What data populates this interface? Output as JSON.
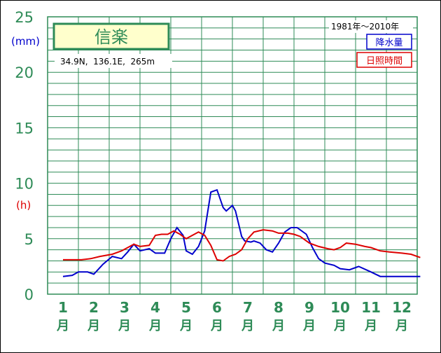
{
  "colors": {
    "grid": "#2e8b57",
    "precip": "#0000cc",
    "sunshine": "#dd0000",
    "title_box_bg": "#ffffcc"
  },
  "chart_data": {
    "type": "line",
    "title": "信楽",
    "location": "34.9N,  136.1E,  265m",
    "period": "1981年〜2010年",
    "yunit_precip": "(mm)",
    "yunit_sunshine": "(h)",
    "ylim": [
      0,
      25
    ],
    "yticks": [
      "0",
      "5",
      "10",
      "15",
      "20",
      "25"
    ],
    "grid": true,
    "legend_position": "top-right",
    "months": [
      "1",
      "2",
      "3",
      "4",
      "5",
      "6",
      "7",
      "8",
      "9",
      "10",
      "11",
      "12"
    ],
    "month_unit": "月",
    "series": [
      {
        "name": "降水量",
        "x": [
          1,
          1.3,
          1.5,
          1.8,
          2.0,
          2.3,
          2.6,
          2.9,
          3.1,
          3.3,
          3.5,
          3.8,
          4.0,
          4.3,
          4.5,
          4.7,
          4.9,
          5.0,
          5.2,
          5.4,
          5.6,
          5.8,
          6.0,
          6.2,
          6.3,
          6.5,
          6.6,
          6.8,
          6.9,
          7.1,
          7.2,
          7.4,
          7.6,
          7.8,
          8.0,
          8.2,
          8.4,
          8.6,
          8.9,
          9.1,
          9.3,
          9.5,
          9.8,
          10.0,
          10.3,
          10.6,
          11.0,
          11.3,
          11.6,
          11.8,
          12.0,
          12.3,
          12.6
        ],
        "y": [
          1.6,
          1.7,
          2.0,
          2.0,
          1.8,
          2.7,
          3.4,
          3.2,
          3.8,
          4.5,
          3.9,
          4.1,
          3.7,
          3.7,
          5.0,
          6.0,
          5.3,
          3.9,
          3.6,
          4.3,
          5.7,
          9.2,
          9.4,
          7.8,
          7.5,
          8.0,
          7.5,
          5.2,
          4.8,
          4.7,
          4.8,
          4.6,
          4.0,
          3.8,
          4.6,
          5.6,
          6.0,
          6.0,
          5.4,
          4.2,
          3.2,
          2.8,
          2.6,
          2.3,
          2.2,
          2.5,
          2.0,
          1.6,
          1.6,
          1.6,
          1.6,
          1.6,
          1.6
        ]
      },
      {
        "name": "日照時間",
        "x": [
          1,
          1.3,
          1.6,
          1.9,
          2.2,
          2.6,
          2.9,
          3.1,
          3.3,
          3.5,
          3.8,
          4.0,
          4.2,
          4.4,
          4.6,
          4.8,
          5.0,
          5.2,
          5.4,
          5.6,
          5.8,
          6.0,
          6.2,
          6.4,
          6.6,
          6.8,
          7.0,
          7.2,
          7.5,
          7.8,
          8.0,
          8.3,
          8.5,
          8.7,
          9.0,
          9.3,
          9.6,
          9.8,
          10.0,
          10.2,
          10.5,
          10.8,
          11.0,
          11.3,
          11.6,
          12.0,
          12.3,
          12.6
        ],
        "y": [
          3.1,
          3.1,
          3.1,
          3.2,
          3.4,
          3.6,
          3.9,
          4.2,
          4.5,
          4.3,
          4.4,
          5.3,
          5.4,
          5.4,
          5.7,
          5.4,
          5.0,
          5.3,
          5.6,
          5.3,
          4.4,
          3.1,
          3.0,
          3.4,
          3.6,
          4.0,
          5.0,
          5.6,
          5.8,
          5.7,
          5.5,
          5.5,
          5.4,
          5.2,
          4.6,
          4.3,
          4.1,
          4.0,
          4.2,
          4.6,
          4.5,
          4.3,
          4.2,
          3.9,
          3.8,
          3.7,
          3.6,
          3.3
        ]
      }
    ]
  }
}
